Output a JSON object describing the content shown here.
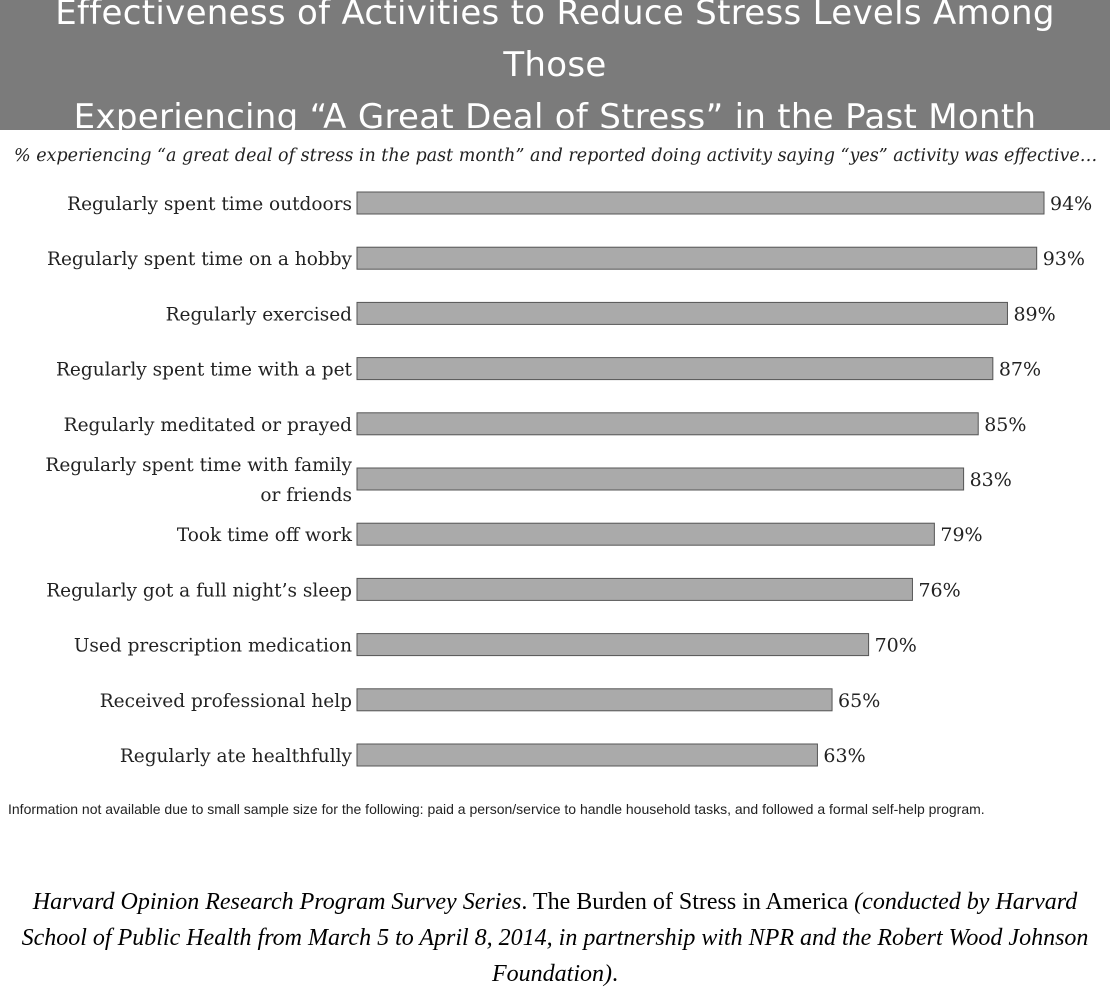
{
  "title_line1": "Effectiveness of Activities to Reduce Stress Levels Among Those",
  "title_line2": "Experiencing “A Great Deal of Stress” in the Past Month",
  "subtitle": "% experiencing “a great deal of stress in the past month” and reported doing activity saying “yes” activity was effective…",
  "footnote": "Information not available due to small sample size for the following: paid a person/service to handle household tasks, and followed a formal self-help program.",
  "citation": {
    "part1": "Harvard Opinion Research Program Survey Series",
    "part2": ". The Burden of Stress in America ",
    "part3": "(conducted by Harvard School of Public Health from March 5 to April 8, 2014, in partnership with NPR and the Robert Wood Johnson Foundation)",
    "part4": "."
  },
  "colors": {
    "title_band": "#7b7b7b",
    "bar_fill": "#aaaaaa",
    "bar_stroke": "#555555"
  },
  "chart_data": {
    "type": "bar",
    "orientation": "horizontal",
    "categories": [
      [
        "Regularly spent time outdoors"
      ],
      [
        "Regularly spent time on a hobby"
      ],
      [
        "Regularly exercised"
      ],
      [
        "Regularly spent time with a pet"
      ],
      [
        "Regularly meditated or prayed"
      ],
      [
        "Regularly spent time with family",
        "or friends"
      ],
      [
        "Took time off work"
      ],
      [
        "Regularly got a full night’s sleep"
      ],
      [
        "Used prescription medication"
      ],
      [
        "Received professional help"
      ],
      [
        "Regularly ate healthfully"
      ]
    ],
    "values": [
      94,
      93,
      89,
      87,
      85,
      83,
      79,
      76,
      70,
      65,
      63
    ],
    "value_labels": [
      "94%",
      "93%",
      "89%",
      "87%",
      "85%",
      "83%",
      "79%",
      "76%",
      "70%",
      "65%",
      "63%"
    ],
    "xlim": [
      0,
      94
    ],
    "grid": false,
    "legend": "none"
  }
}
